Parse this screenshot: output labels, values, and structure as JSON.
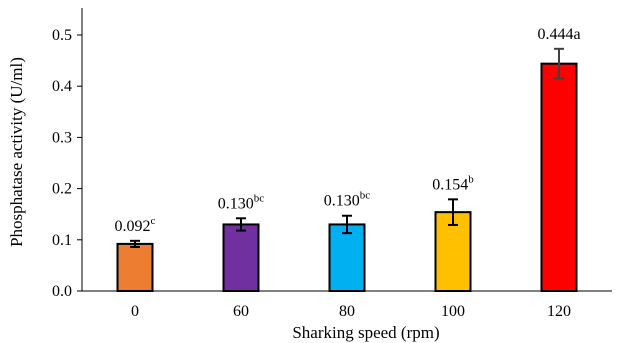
{
  "chart_data": {
    "type": "bar",
    "title": "",
    "xlabel": "Sharking speed (rpm)",
    "ylabel": "Phosphatase activity (U/ml)",
    "categories": [
      "0",
      "60",
      "80",
      "100",
      "120"
    ],
    "values": [
      0.092,
      0.13,
      0.13,
      0.154,
      0.444
    ],
    "errors": [
      0.006,
      0.012,
      0.017,
      0.025,
      0.029
    ],
    "data_labels": [
      {
        "value": "0.092",
        "sup": "c"
      },
      {
        "value": "0.130",
        "sup": "bc"
      },
      {
        "value": "0.130",
        "sup": "bc"
      },
      {
        "value": "0.154",
        "sup": "b"
      },
      {
        "value": "0.444a",
        "sup": ""
      }
    ],
    "bar_colors": [
      "#ED7D31",
      "#7030A0",
      "#00B0F0",
      "#FFC000",
      "#FF0000"
    ],
    "bar_border_color": "#000000",
    "ylim": [
      0,
      0.55
    ],
    "yticks": [
      "0.0",
      "0.1",
      "0.2",
      "0.3",
      "0.4",
      "0.5"
    ],
    "ytick_values": [
      0,
      0.1,
      0.2,
      0.3,
      0.4,
      0.5
    ],
    "grid": false,
    "legend": "none"
  }
}
